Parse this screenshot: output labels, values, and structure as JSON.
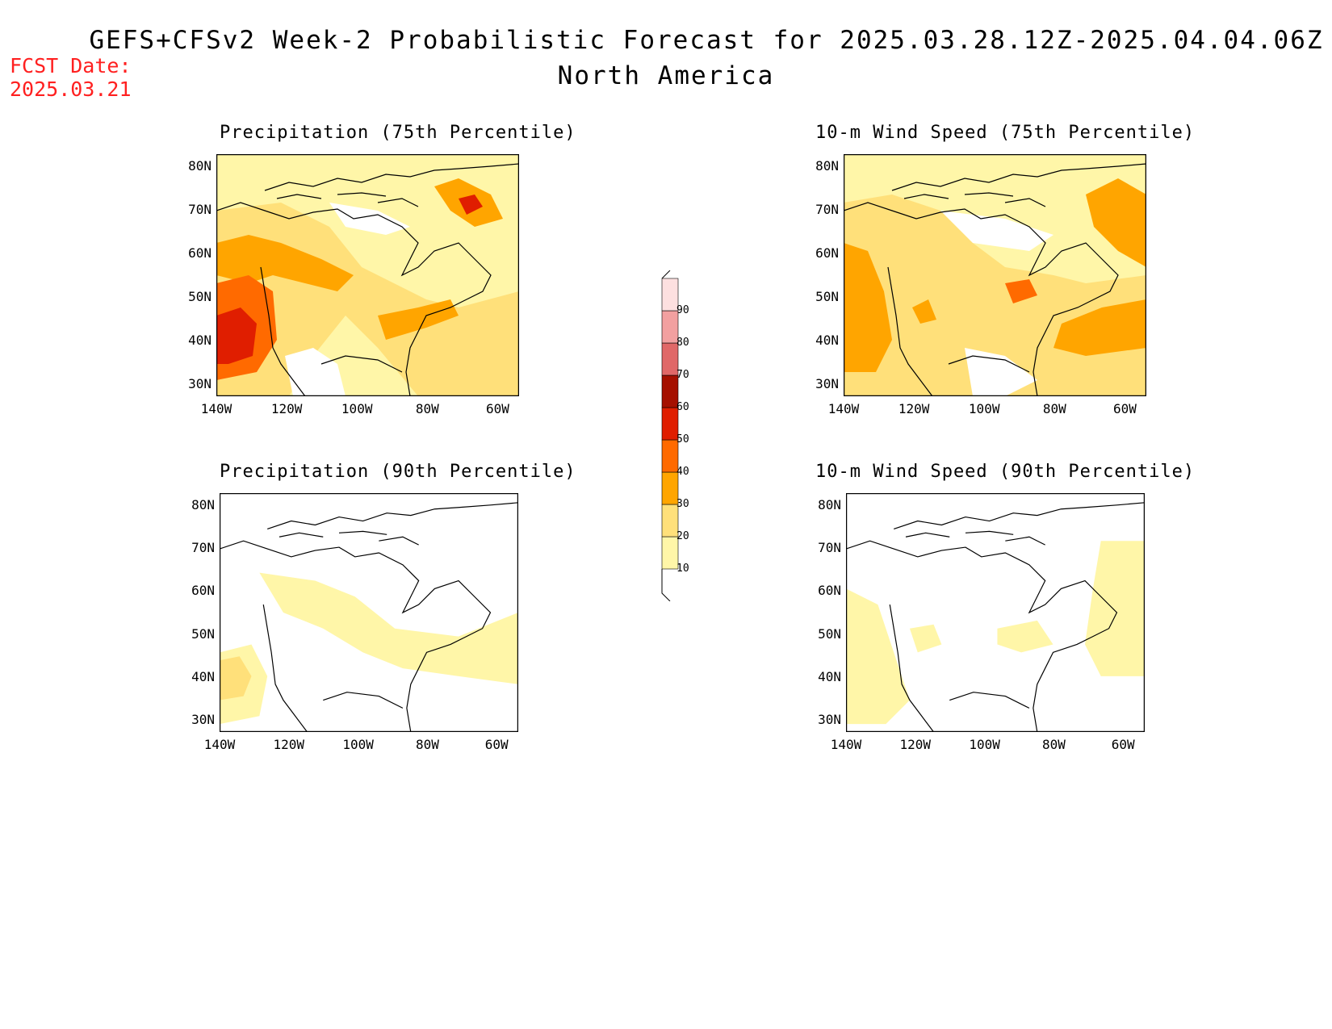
{
  "header": {
    "title_line1": "GEFS+CFSv2 Week-2 Probabilistic Forecast for 2025.03.28.12Z-2025.04.04.06Z",
    "title_line2": "North America",
    "fcst_label": "FCST Date:",
    "fcst_date": "2025.03.21"
  },
  "panels": [
    {
      "id": "precip75",
      "title": "Precipitation (75th Percentile)"
    },
    {
      "id": "wind75",
      "title": "10-m Wind Speed (75th Percentile)"
    },
    {
      "id": "precip90",
      "title": "Precipitation (90th Percentile)"
    },
    {
      "id": "wind90",
      "title": "10-m Wind Speed (90th Percentile)"
    }
  ],
  "axes": {
    "lat_ticks": [
      "80N",
      "70N",
      "60N",
      "50N",
      "40N",
      "30N"
    ],
    "lon_ticks": [
      "140W",
      "120W",
      "100W",
      "80W",
      "60W"
    ]
  },
  "colorbar": {
    "levels": [
      "10",
      "20",
      "30",
      "40",
      "50",
      "60",
      "70",
      "80",
      "90"
    ],
    "colors": [
      "#fff6a8",
      "#ffe07a",
      "#ffa500",
      "#ff6a00",
      "#e01e00",
      "#a51000",
      "#e06868",
      "#f2a0a0",
      "#fde0e0"
    ]
  }
}
